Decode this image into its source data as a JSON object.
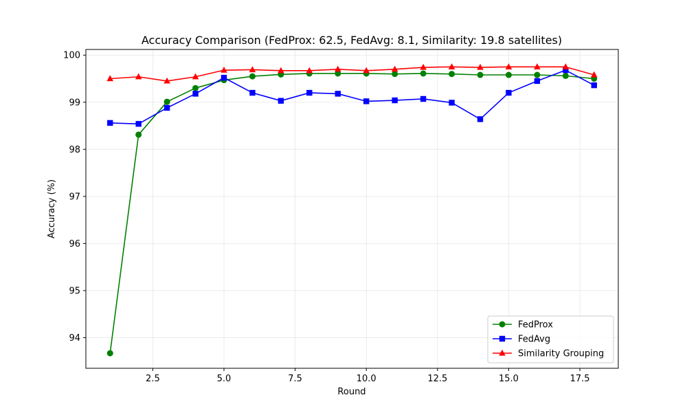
{
  "chart_data": {
    "type": "line",
    "title": "Accuracy Comparison (FedProx: 62.5, FedAvg: 8.1, Similarity: 19.8 satellites)",
    "xlabel": "Round",
    "ylabel": "Accuracy (%)",
    "xlim": [
      0.15,
      18.85
    ],
    "ylim": [
      93.35,
      100.12
    ],
    "xticks": [
      2.5,
      5.0,
      7.5,
      10.0,
      12.5,
      15.0,
      17.5
    ],
    "xtick_labels": [
      "2.5",
      "5.0",
      "7.5",
      "10.0",
      "12.5",
      "15.0",
      "17.5"
    ],
    "yticks": [
      94,
      95,
      96,
      97,
      98,
      99,
      100
    ],
    "ytick_labels": [
      "94",
      "95",
      "96",
      "97",
      "98",
      "99",
      "100"
    ],
    "grid": true,
    "legend_position": "lower-right",
    "x": [
      1,
      2,
      3,
      4,
      5,
      6,
      7,
      8,
      9,
      10,
      11,
      12,
      13,
      14,
      15,
      16,
      17,
      18
    ],
    "series": [
      {
        "name": "FedProx",
        "color": "#008000",
        "marker": "circle",
        "values": [
          93.67,
          98.31,
          99.01,
          99.3,
          99.47,
          99.55,
          99.59,
          99.61,
          99.61,
          99.61,
          99.6,
          99.61,
          99.6,
          99.58,
          99.58,
          99.58,
          99.56,
          99.5
        ]
      },
      {
        "name": "FedAvg",
        "color": "#0000ff",
        "marker": "square",
        "values": [
          98.56,
          98.54,
          98.88,
          99.18,
          99.52,
          99.2,
          99.03,
          99.2,
          99.18,
          99.02,
          99.04,
          99.07,
          98.99,
          98.64,
          99.2,
          99.45,
          99.68,
          99.36
        ]
      },
      {
        "name": "Similarity Grouping",
        "color": "#ff0000",
        "marker": "triangle",
        "values": [
          99.5,
          99.54,
          99.45,
          99.54,
          99.68,
          99.69,
          99.67,
          99.67,
          99.7,
          99.67,
          99.7,
          99.74,
          99.75,
          99.74,
          99.75,
          99.75,
          99.75,
          99.58
        ]
      }
    ]
  }
}
